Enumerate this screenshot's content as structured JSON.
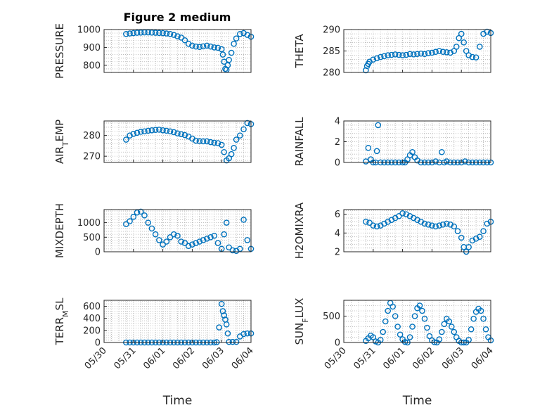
{
  "figure": {
    "title": "Figure 2 medium"
  },
  "style": {
    "marker_color": "#0072BD"
  },
  "chart_data": [
    {
      "type": "scatter",
      "ylabel": "PRESSURE",
      "xlim": [
        "2009-05-30",
        "2009-06-04"
      ],
      "ylim": [
        760,
        1000
      ],
      "yticks": [
        800,
        900,
        1000
      ],
      "xticks": [
        "05/30",
        "05/31",
        "06/01",
        "06/02",
        "06/03",
        "06/04"
      ],
      "show_xticklabels": false,
      "xlabel": "",
      "grid": true,
      "x": [
        "2009-05-30 18:00",
        "2009-05-30 21:00",
        "2009-05-31 00:00",
        "2009-05-31 03:00",
        "2009-05-31 06:00",
        "2009-05-31 09:00",
        "2009-05-31 12:00",
        "2009-05-31 15:00",
        "2009-05-31 18:00",
        "2009-05-31 21:00",
        "2009-06-01 00:00",
        "2009-06-01 03:00",
        "2009-06-01 06:00",
        "2009-06-01 09:00",
        "2009-06-01 12:00",
        "2009-06-01 15:00",
        "2009-06-01 18:00",
        "2009-06-01 21:00",
        "2009-06-02 00:00",
        "2009-06-02 03:00",
        "2009-06-02 06:00",
        "2009-06-02 09:00",
        "2009-06-02 12:00",
        "2009-06-02 15:00",
        "2009-06-02 18:00",
        "2009-06-02 21:00",
        "2009-06-03 00:00",
        "2009-06-03 01:00",
        "2009-06-03 02:00",
        "2009-06-03 03:00",
        "2009-06-03 04:00",
        "2009-06-03 05:00",
        "2009-06-03 06:00",
        "2009-06-03 08:00",
        "2009-06-03 10:00",
        "2009-06-03 12:00",
        "2009-06-03 15:00",
        "2009-06-03 18:00",
        "2009-06-03 21:00",
        "2009-06-04 00:00"
      ],
      "y": [
        975,
        978,
        980,
        982,
        983,
        984,
        984,
        983,
        982,
        981,
        980,
        978,
        975,
        970,
        962,
        955,
        940,
        920,
        910,
        905,
        903,
        906,
        910,
        905,
        900,
        898,
        890,
        860,
        820,
        780,
        775,
        800,
        830,
        870,
        920,
        950,
        975,
        980,
        970,
        960
      ]
    },
    {
      "type": "scatter",
      "ylabel": "THETA",
      "xlim": [
        "2009-05-30",
        "2009-06-04"
      ],
      "ylim": [
        280,
        290
      ],
      "yticks": [
        280,
        285,
        290
      ],
      "xticks": [
        "05/30",
        "05/31",
        "06/01",
        "06/02",
        "06/03",
        "06/04"
      ],
      "show_xticklabels": false,
      "xlabel": "",
      "grid": true,
      "x": [
        "2009-05-30 18:00",
        "2009-05-30 19:00",
        "2009-05-30 20:00",
        "2009-05-30 21:00",
        "2009-05-31 00:00",
        "2009-05-31 03:00",
        "2009-05-31 06:00",
        "2009-05-31 09:00",
        "2009-05-31 12:00",
        "2009-05-31 15:00",
        "2009-05-31 18:00",
        "2009-05-31 21:00",
        "2009-06-01 00:00",
        "2009-06-01 03:00",
        "2009-06-01 06:00",
        "2009-06-01 09:00",
        "2009-06-01 12:00",
        "2009-06-01 15:00",
        "2009-06-01 18:00",
        "2009-06-01 21:00",
        "2009-06-02 00:00",
        "2009-06-02 03:00",
        "2009-06-02 06:00",
        "2009-06-02 09:00",
        "2009-06-02 12:00",
        "2009-06-02 15:00",
        "2009-06-02 18:00",
        "2009-06-02 20:00",
        "2009-06-02 22:00",
        "2009-06-03 00:00",
        "2009-06-03 02:00",
        "2009-06-03 04:00",
        "2009-06-03 06:00",
        "2009-06-03 09:00",
        "2009-06-03 12:00",
        "2009-06-03 15:00",
        "2009-06-03 18:00",
        "2009-06-03 21:00",
        "2009-06-04 00:00"
      ],
      "y": [
        280.5,
        281.5,
        282,
        282.5,
        283,
        283.3,
        283.6,
        283.8,
        284,
        284.1,
        284.2,
        284.1,
        284,
        284.1,
        284.3,
        284.2,
        284.3,
        284.4,
        284.3,
        284.5,
        284.6,
        284.8,
        285,
        284.8,
        284.7,
        284.6,
        285,
        286,
        288,
        289,
        287,
        285,
        284,
        283.6,
        283.5,
        286,
        289,
        289.5,
        289.2
      ]
    },
    {
      "type": "scatter",
      "ylabel": "AIR_TEMP",
      "xlim": [
        "2009-05-30",
        "2009-06-04"
      ],
      "ylim": [
        267,
        287
      ],
      "yticks": [
        270,
        280
      ],
      "xticks": [
        "05/30",
        "05/31",
        "06/01",
        "06/02",
        "06/03",
        "06/04"
      ],
      "show_xticklabels": false,
      "xlabel": "",
      "grid": true,
      "x": [
        "2009-05-30 18:00",
        "2009-05-30 21:00",
        "2009-05-31 00:00",
        "2009-05-31 03:00",
        "2009-05-31 06:00",
        "2009-05-31 09:00",
        "2009-05-31 12:00",
        "2009-05-31 15:00",
        "2009-05-31 18:00",
        "2009-05-31 21:00",
        "2009-06-01 00:00",
        "2009-06-01 03:00",
        "2009-06-01 06:00",
        "2009-06-01 09:00",
        "2009-06-01 12:00",
        "2009-06-01 15:00",
        "2009-06-01 18:00",
        "2009-06-01 21:00",
        "2009-06-02 00:00",
        "2009-06-02 03:00",
        "2009-06-02 06:00",
        "2009-06-02 09:00",
        "2009-06-02 12:00",
        "2009-06-02 15:00",
        "2009-06-02 18:00",
        "2009-06-02 21:00",
        "2009-06-03 00:00",
        "2009-06-03 02:00",
        "2009-06-03 04:00",
        "2009-06-03 06:00",
        "2009-06-03 08:00",
        "2009-06-03 10:00",
        "2009-06-03 12:00",
        "2009-06-03 15:00",
        "2009-06-03 18:00",
        "2009-06-03 21:00",
        "2009-06-04 00:00"
      ],
      "y": [
        278,
        280,
        280.8,
        281.3,
        281.8,
        282,
        282.3,
        282.5,
        282.7,
        282.8,
        282.5,
        282.3,
        282,
        281.6,
        281,
        280.6,
        280.2,
        279.5,
        278.5,
        277.5,
        277.3,
        277.2,
        277.2,
        276.8,
        276.5,
        276.3,
        275.5,
        272,
        268,
        269,
        271,
        274,
        278,
        280,
        283,
        286,
        285.5
      ]
    },
    {
      "type": "scatter",
      "ylabel": "RAINFALL",
      "xlim": [
        "2009-05-30",
        "2009-06-04"
      ],
      "ylim": [
        0,
        4
      ],
      "yticks": [
        0,
        2,
        4
      ],
      "xticks": [
        "05/30",
        "05/31",
        "06/01",
        "06/02",
        "06/03",
        "06/04"
      ],
      "show_xticklabels": false,
      "xlabel": "",
      "grid": true,
      "x": [
        "2009-05-30 18:00",
        "2009-05-30 20:00",
        "2009-05-30 22:00",
        "2009-05-31 00:00",
        "2009-05-31 02:00",
        "2009-05-31 03:00",
        "2009-05-31 04:00",
        "2009-05-31 06:00",
        "2009-05-31 09:00",
        "2009-05-31 12:00",
        "2009-05-31 15:00",
        "2009-05-31 18:00",
        "2009-05-31 21:00",
        "2009-06-01 00:00",
        "2009-06-01 02:00",
        "2009-06-01 04:00",
        "2009-06-01 06:00",
        "2009-06-01 08:00",
        "2009-06-01 10:00",
        "2009-06-01 12:00",
        "2009-06-01 15:00",
        "2009-06-01 18:00",
        "2009-06-01 21:00",
        "2009-06-02 00:00",
        "2009-06-02 03:00",
        "2009-06-02 06:00",
        "2009-06-02 08:00",
        "2009-06-02 10:00",
        "2009-06-02 12:00",
        "2009-06-02 15:00",
        "2009-06-02 18:00",
        "2009-06-02 21:00",
        "2009-06-03 00:00",
        "2009-06-03 03:00",
        "2009-06-03 06:00",
        "2009-06-03 09:00",
        "2009-06-03 12:00",
        "2009-06-03 15:00",
        "2009-06-03 18:00",
        "2009-06-03 21:00",
        "2009-06-04 00:00"
      ],
      "y": [
        0.1,
        1.4,
        0.3,
        0,
        0,
        1.1,
        3.6,
        0,
        0,
        0,
        0,
        0,
        0,
        0,
        0,
        0.3,
        0.7,
        1.0,
        0.5,
        0.2,
        0,
        0,
        0,
        0,
        0.1,
        0,
        1.0,
        0,
        0.1,
        0,
        0,
        0,
        0,
        0.1,
        0,
        0,
        0,
        0,
        0,
        0,
        0
      ]
    },
    {
      "type": "scatter",
      "ylabel": "MIXDEPTH",
      "xlim": [
        "2009-05-30",
        "2009-06-04"
      ],
      "ylim": [
        0,
        1450
      ],
      "yticks": [
        0,
        500,
        1000
      ],
      "xticks": [
        "05/30",
        "05/31",
        "06/01",
        "06/02",
        "06/03",
        "06/04"
      ],
      "show_xticklabels": false,
      "xlabel": "",
      "grid": true,
      "x": [
        "2009-05-30 18:00",
        "2009-05-30 21:00",
        "2009-05-31 00:00",
        "2009-05-31 03:00",
        "2009-05-31 06:00",
        "2009-05-31 09:00",
        "2009-05-31 12:00",
        "2009-05-31 15:00",
        "2009-05-31 18:00",
        "2009-05-31 21:00",
        "2009-06-01 00:00",
        "2009-06-01 03:00",
        "2009-06-01 06:00",
        "2009-06-01 09:00",
        "2009-06-01 12:00",
        "2009-06-01 15:00",
        "2009-06-01 18:00",
        "2009-06-01 21:00",
        "2009-06-02 00:00",
        "2009-06-02 03:00",
        "2009-06-02 06:00",
        "2009-06-02 09:00",
        "2009-06-02 12:00",
        "2009-06-02 15:00",
        "2009-06-02 18:00",
        "2009-06-02 21:00",
        "2009-06-03 00:00",
        "2009-06-03 02:00",
        "2009-06-03 04:00",
        "2009-06-03 06:00",
        "2009-06-03 09:00",
        "2009-06-03 12:00",
        "2009-06-03 15:00",
        "2009-06-03 18:00",
        "2009-06-03 21:00",
        "2009-06-04 00:00"
      ],
      "y": [
        950,
        1050,
        1200,
        1350,
        1380,
        1250,
        1000,
        800,
        600,
        400,
        250,
        350,
        500,
        600,
        550,
        350,
        300,
        200,
        250,
        300,
        350,
        400,
        450,
        500,
        550,
        300,
        100,
        600,
        1000,
        150,
        50,
        30,
        100,
        1100,
        400,
        100
      ]
    },
    {
      "type": "scatter",
      "ylabel": "H2OMIXRA",
      "xlim": [
        "2009-05-30",
        "2009-06-04"
      ],
      "ylim": [
        2,
        6.5
      ],
      "yticks": [
        2,
        4,
        6
      ],
      "xticks": [
        "05/30",
        "05/31",
        "06/01",
        "06/02",
        "06/03",
        "06/04"
      ],
      "show_xticklabels": false,
      "xlabel": "",
      "grid": true,
      "x": [
        "2009-05-30 18:00",
        "2009-05-30 21:00",
        "2009-05-31 00:00",
        "2009-05-31 03:00",
        "2009-05-31 06:00",
        "2009-05-31 09:00",
        "2009-05-31 12:00",
        "2009-05-31 15:00",
        "2009-05-31 18:00",
        "2009-05-31 21:00",
        "2009-06-01 00:00",
        "2009-06-01 03:00",
        "2009-06-01 06:00",
        "2009-06-01 09:00",
        "2009-06-01 12:00",
        "2009-06-01 15:00",
        "2009-06-01 18:00",
        "2009-06-01 21:00",
        "2009-06-02 00:00",
        "2009-06-02 03:00",
        "2009-06-02 06:00",
        "2009-06-02 09:00",
        "2009-06-02 12:00",
        "2009-06-02 15:00",
        "2009-06-02 18:00",
        "2009-06-02 21:00",
        "2009-06-03 00:00",
        "2009-06-03 02:00",
        "2009-06-03 04:00",
        "2009-06-03 06:00",
        "2009-06-03 09:00",
        "2009-06-03 12:00",
        "2009-06-03 15:00",
        "2009-06-03 18:00",
        "2009-06-03 21:00",
        "2009-06-04 00:00"
      ],
      "y": [
        5.2,
        5.1,
        4.8,
        4.7,
        4.8,
        5.0,
        5.2,
        5.4,
        5.6,
        5.8,
        6.1,
        6.0,
        5.8,
        5.6,
        5.4,
        5.2,
        5.0,
        4.9,
        4.8,
        4.7,
        4.8,
        4.9,
        5.0,
        4.9,
        4.7,
        4.2,
        3.5,
        2.5,
        2.0,
        2.5,
        3.2,
        3.4,
        3.6,
        4.2,
        5.0,
        5.2
      ]
    },
    {
      "type": "scatter",
      "ylabel": "TERR_MSL",
      "xlim": [
        "2009-05-30",
        "2009-06-04"
      ],
      "ylim": [
        0,
        700
      ],
      "yticks": [
        0,
        200,
        400,
        600
      ],
      "xticks": [
        "05/30",
        "05/31",
        "06/01",
        "06/02",
        "06/03",
        "06/04"
      ],
      "show_xticklabels": true,
      "xlabel": "Time",
      "grid": true,
      "x": [
        "2009-05-30 18:00",
        "2009-05-30 21:00",
        "2009-05-31 00:00",
        "2009-05-31 03:00",
        "2009-05-31 06:00",
        "2009-05-31 09:00",
        "2009-05-31 12:00",
        "2009-05-31 15:00",
        "2009-05-31 18:00",
        "2009-05-31 21:00",
        "2009-06-01 00:00",
        "2009-06-01 03:00",
        "2009-06-01 06:00",
        "2009-06-01 09:00",
        "2009-06-01 12:00",
        "2009-06-01 15:00",
        "2009-06-01 18:00",
        "2009-06-01 21:00",
        "2009-06-02 00:00",
        "2009-06-02 03:00",
        "2009-06-02 06:00",
        "2009-06-02 09:00",
        "2009-06-02 12:00",
        "2009-06-02 15:00",
        "2009-06-02 18:00",
        "2009-06-02 20:00",
        "2009-06-02 22:00",
        "2009-06-03 00:00",
        "2009-06-03 01:00",
        "2009-06-03 02:00",
        "2009-06-03 03:00",
        "2009-06-03 04:00",
        "2009-06-03 05:00",
        "2009-06-03 06:00",
        "2009-06-03 09:00",
        "2009-06-03 12:00",
        "2009-06-03 15:00",
        "2009-06-03 18:00",
        "2009-06-03 21:00",
        "2009-06-04 00:00"
      ],
      "y": [
        0,
        0,
        0,
        0,
        0,
        0,
        0,
        0,
        0,
        0,
        0,
        0,
        0,
        0,
        0,
        0,
        0,
        0,
        0,
        0,
        0,
        0,
        0,
        0,
        0,
        5,
        250,
        640,
        520,
        450,
        380,
        300,
        150,
        10,
        10,
        10,
        100,
        140,
        150,
        150
      ]
    },
    {
      "type": "scatter",
      "ylabel": "SUN_FLUX",
      "xlim": [
        "2009-05-30",
        "2009-06-04"
      ],
      "ylim": [
        0,
        800
      ],
      "yticks": [
        0,
        500
      ],
      "xticks": [
        "05/30",
        "05/31",
        "06/01",
        "06/02",
        "06/03",
        "06/04"
      ],
      "show_xticklabels": true,
      "xlabel": "Time",
      "grid": true,
      "x": [
        "2009-05-30 18:00",
        "2009-05-30 20:00",
        "2009-05-30 22:00",
        "2009-05-31 00:00",
        "2009-05-31 02:00",
        "2009-05-31 04:00",
        "2009-05-31 06:00",
        "2009-05-31 08:00",
        "2009-05-31 10:00",
        "2009-05-31 12:00",
        "2009-05-31 14:00",
        "2009-05-31 16:00",
        "2009-05-31 18:00",
        "2009-05-31 20:00",
        "2009-05-31 22:00",
        "2009-06-01 00:00",
        "2009-06-01 02:00",
        "2009-06-01 04:00",
        "2009-06-01 06:00",
        "2009-06-01 08:00",
        "2009-06-01 10:00",
        "2009-06-01 12:00",
        "2009-06-01 14:00",
        "2009-06-01 16:00",
        "2009-06-01 18:00",
        "2009-06-01 20:00",
        "2009-06-01 22:00",
        "2009-06-02 00:00",
        "2009-06-02 02:00",
        "2009-06-02 04:00",
        "2009-06-02 06:00",
        "2009-06-02 08:00",
        "2009-06-02 10:00",
        "2009-06-02 12:00",
        "2009-06-02 14:00",
        "2009-06-02 16:00",
        "2009-06-02 18:00",
        "2009-06-02 20:00",
        "2009-06-02 22:00",
        "2009-06-03 00:00",
        "2009-06-03 02:00",
        "2009-06-03 04:00",
        "2009-06-03 06:00",
        "2009-06-03 08:00",
        "2009-06-03 10:00",
        "2009-06-03 12:00",
        "2009-06-03 14:00",
        "2009-06-03 16:00",
        "2009-06-03 18:00",
        "2009-06-03 20:00",
        "2009-06-03 22:00",
        "2009-06-04 00:00"
      ],
      "y": [
        30,
        80,
        130,
        100,
        20,
        0,
        50,
        200,
        400,
        600,
        750,
        680,
        500,
        300,
        150,
        60,
        10,
        0,
        100,
        300,
        500,
        650,
        700,
        600,
        450,
        280,
        120,
        40,
        5,
        0,
        60,
        200,
        350,
        450,
        400,
        300,
        200,
        100,
        30,
        0,
        0,
        0,
        50,
        250,
        450,
        580,
        640,
        600,
        450,
        250,
        100,
        40
      ]
    }
  ]
}
